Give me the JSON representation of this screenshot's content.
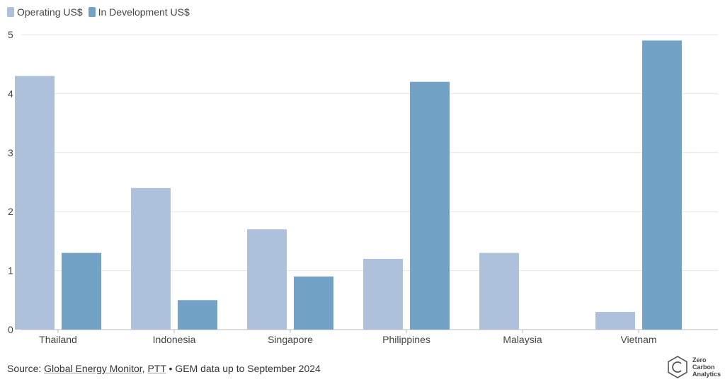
{
  "legend": {
    "operating_label": "Operating US$",
    "development_label": "In Development US$"
  },
  "colors": {
    "operating": "#adc2da",
    "development": "#72a3c7",
    "grid": "#e6e6e6",
    "axis": "#bbbbbb"
  },
  "footer": {
    "prefix": "Source: ",
    "source1": "Global Energy Monitor",
    "sep1": ", ",
    "source2": "PTT",
    "suffix": " • GEM data up to September 2024"
  },
  "logo": {
    "line1": "Zero",
    "line2": "Carbon",
    "line3": "Analytics"
  },
  "chart_data": {
    "type": "bar",
    "categories": [
      "Thailand",
      "Indonesia",
      "Singapore",
      "Philippines",
      "Malaysia",
      "Vietnam"
    ],
    "series": [
      {
        "name": "Operating US$",
        "values": [
          4.3,
          2.4,
          1.7,
          1.2,
          1.3,
          0.3
        ]
      },
      {
        "name": "In Development US$",
        "values": [
          1.3,
          0.5,
          0.9,
          4.2,
          0,
          4.9
        ]
      }
    ],
    "yticks": [
      0,
      1,
      2,
      3,
      4,
      5
    ],
    "ylim": [
      0,
      5
    ],
    "grid": true,
    "legend_position": "top-left"
  }
}
